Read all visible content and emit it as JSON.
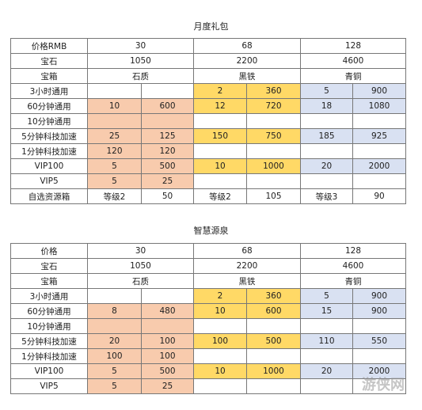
{
  "tables": [
    {
      "title": "月度礼包",
      "header_label": "价格RMB",
      "prices": [
        "30",
        "68",
        "128"
      ],
      "gems_label": "宝石",
      "gems": [
        "1050",
        "2200",
        "4600"
      ],
      "chest_label": "宝箱",
      "chests": [
        "石质",
        "黑铁",
        "青铜"
      ],
      "rows": [
        {
          "label": "3小时通用",
          "v": [
            "",
            "",
            "2",
            "360",
            "5",
            "900"
          ]
        },
        {
          "label": "60分钟通用",
          "v": [
            "10",
            "600",
            "12",
            "720",
            "18",
            "1080"
          ]
        },
        {
          "label": "10分钟通用",
          "v": [
            "",
            "",
            "",
            "",
            "",
            ""
          ]
        },
        {
          "label": "5分钟科技加速",
          "v": [
            "25",
            "125",
            "150",
            "750",
            "185",
            "925"
          ]
        },
        {
          "label": "1分钟科技加速",
          "v": [
            "120",
            "120",
            "",
            "",
            "",
            ""
          ]
        },
        {
          "label": "VIP100",
          "v": [
            "5",
            "500",
            "10",
            "1000",
            "20",
            "2000"
          ]
        },
        {
          "label": "VIP5",
          "v": [
            "5",
            "25",
            "",
            "",
            "",
            ""
          ]
        },
        {
          "label": "自选资源箱",
          "v": [
            "等级2",
            "50",
            "等级2",
            "105",
            "等级3",
            "90"
          ]
        }
      ]
    },
    {
      "title": "智慧源泉",
      "header_label": "价格",
      "prices": [
        "30",
        "68",
        "128"
      ],
      "gems_label": "宝石",
      "gems": [
        "1050",
        "2200",
        "4600"
      ],
      "chest_label": "宝箱",
      "chests": [
        "石质",
        "黑铁",
        "青铜"
      ],
      "rows": [
        {
          "label": "3小时通用",
          "v": [
            "",
            "",
            "2",
            "360",
            "5",
            "900"
          ]
        },
        {
          "label": "60分钟通用",
          "v": [
            "8",
            "480",
            "10",
            "600",
            "15",
            "900"
          ]
        },
        {
          "label": "10分钟通用",
          "v": [
            "",
            "",
            "",
            "",
            "",
            ""
          ]
        },
        {
          "label": "5分钟科技加速",
          "v": [
            "20",
            "100",
            "100",
            "500",
            "110",
            "550"
          ]
        },
        {
          "label": "1分钟科技加速",
          "v": [
            "100",
            "100",
            "",
            "",
            "",
            ""
          ]
        },
        {
          "label": "VIP100",
          "v": [
            "5",
            "500",
            "10",
            "1000",
            "20",
            "2000"
          ]
        },
        {
          "label": "VIP5",
          "v": [
            "5",
            "25",
            "",
            "",
            "",
            ""
          ]
        }
      ]
    }
  ],
  "watermark": "游侠网"
}
